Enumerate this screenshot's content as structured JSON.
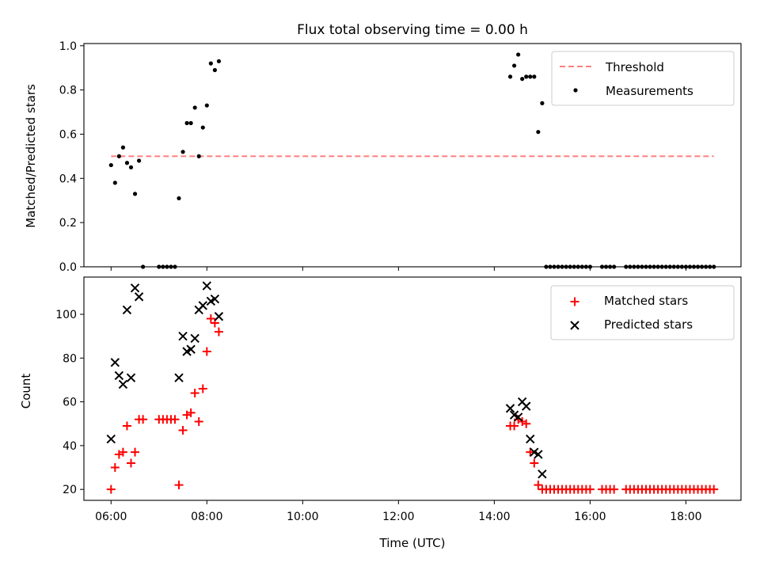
{
  "figure": {
    "title": "Flux total observing time = 0.00 h"
  },
  "chart_data": [
    {
      "type": "scatter",
      "xlabel": "",
      "ylabel": "Matched/Predicted stars",
      "xlim": [
        "05:26",
        "19:09"
      ],
      "ylim": [
        0,
        1.01
      ],
      "yticks": [
        "0.0",
        "0.2",
        "0.4",
        "0.6",
        "0.8",
        "1.0"
      ],
      "grid": false,
      "legend_position": "upper right",
      "threshold": {
        "name": "Threshold",
        "x": [
          "06:00",
          "18:35"
        ],
        "y": 0.5,
        "color": "#ff7f7f"
      },
      "series": [
        {
          "name": "Measurements",
          "color": "#000000",
          "x": [
            "06:00",
            "06:05",
            "06:10",
            "06:15",
            "06:20",
            "06:25",
            "06:30",
            "06:35",
            "06:40",
            "07:00",
            "07:05",
            "07:10",
            "07:15",
            "07:20",
            "07:25",
            "07:30",
            "07:35",
            "07:40",
            "07:45",
            "07:50",
            "07:55",
            "08:00",
            "08:05",
            "08:10",
            "08:15",
            "14:20",
            "14:25",
            "14:30",
            "14:35",
            "14:40",
            "14:45",
            "14:50",
            "14:55",
            "15:00",
            "15:05",
            "15:10",
            "15:15",
            "15:20",
            "15:25",
            "15:30",
            "15:35",
            "15:40",
            "15:45",
            "15:50",
            "15:55",
            "16:00",
            "16:15",
            "16:20",
            "16:25",
            "16:30",
            "16:45",
            "16:50",
            "16:55",
            "17:00",
            "17:05",
            "17:10",
            "17:15",
            "17:20",
            "17:25",
            "17:30",
            "17:35",
            "17:40",
            "17:45",
            "17:50",
            "17:55",
            "18:00",
            "18:05",
            "18:10",
            "18:15",
            "18:20",
            "18:25",
            "18:30",
            "18:35"
          ],
          "y": [
            0.46,
            0.38,
            0.5,
            0.54,
            0.47,
            0.45,
            0.33,
            0.48,
            0.0,
            0.0,
            0.0,
            0.0,
            0.0,
            0.0,
            0.31,
            0.52,
            0.65,
            0.65,
            0.72,
            0.5,
            0.63,
            0.73,
            0.92,
            0.89,
            0.93,
            0.86,
            0.91,
            0.96,
            0.85,
            0.86,
            0.86,
            0.86,
            0.61,
            0.74,
            0.0,
            0.0,
            0.0,
            0.0,
            0.0,
            0.0,
            0.0,
            0.0,
            0.0,
            0.0,
            0.0,
            0.0,
            0.0,
            0.0,
            0.0,
            0.0,
            0.0,
            0.0,
            0.0,
            0.0,
            0.0,
            0.0,
            0.0,
            0.0,
            0.0,
            0.0,
            0.0,
            0.0,
            0.0,
            0.0,
            0.0,
            0.0,
            0.0,
            0.0,
            0.0,
            0.0,
            0.0,
            0.0,
            0.0
          ]
        }
      ]
    },
    {
      "type": "scatter",
      "xlabel": "Time (UTC)",
      "ylabel": "Count",
      "xlim": [
        "05:26",
        "19:09"
      ],
      "ylim": [
        15,
        117
      ],
      "xticks": [
        "06:00",
        "08:00",
        "10:00",
        "12:00",
        "14:00",
        "16:00",
        "18:00"
      ],
      "yticks": [
        "20",
        "40",
        "60",
        "80",
        "100"
      ],
      "grid": false,
      "legend_position": "upper right",
      "series": [
        {
          "name": "Matched stars",
          "marker": "+",
          "color": "#ff0000",
          "x": [
            "06:00",
            "06:05",
            "06:10",
            "06:15",
            "06:20",
            "06:25",
            "06:30",
            "06:35",
            "06:40",
            "07:00",
            "07:05",
            "07:10",
            "07:15",
            "07:20",
            "07:25",
            "07:30",
            "07:35",
            "07:40",
            "07:45",
            "07:50",
            "07:55",
            "08:00",
            "08:05",
            "08:10",
            "08:15",
            "14:20",
            "14:25",
            "14:30",
            "14:35",
            "14:40",
            "14:45",
            "14:50",
            "14:55",
            "15:00",
            "15:05",
            "15:10",
            "15:15",
            "15:20",
            "15:25",
            "15:30",
            "15:35",
            "15:40",
            "15:45",
            "15:50",
            "15:55",
            "16:00",
            "16:15",
            "16:20",
            "16:25",
            "16:30",
            "16:45",
            "16:50",
            "16:55",
            "17:00",
            "17:05",
            "17:10",
            "17:15",
            "17:20",
            "17:25",
            "17:30",
            "17:35",
            "17:40",
            "17:45",
            "17:50",
            "17:55",
            "18:00",
            "18:05",
            "18:10",
            "18:15",
            "18:20",
            "18:25",
            "18:30",
            "18:35"
          ],
          "y": [
            20,
            30,
            36,
            37,
            49,
            32,
            37,
            52,
            52,
            52,
            52,
            52,
            52,
            52,
            22,
            47,
            54,
            55,
            64,
            51,
            66,
            83,
            98,
            96,
            92,
            49,
            49,
            52,
            51,
            50,
            37,
            32,
            22,
            20,
            20,
            20,
            20,
            20,
            20,
            20,
            20,
            20,
            20,
            20,
            20,
            20,
            20,
            20,
            20,
            20,
            20,
            20,
            20,
            20,
            20,
            20,
            20,
            20,
            20,
            20,
            20,
            20,
            20,
            20,
            20,
            20,
            20,
            20,
            20,
            20,
            20,
            20,
            20
          ]
        },
        {
          "name": "Predicted stars",
          "marker": "x",
          "color": "#000000",
          "x": [
            "06:00",
            "06:05",
            "06:10",
            "06:15",
            "06:20",
            "06:25",
            "06:30",
            "06:35",
            "07:25",
            "07:30",
            "07:35",
            "07:40",
            "07:45",
            "07:50",
            "07:55",
            "08:00",
            "08:05",
            "08:10",
            "08:15",
            "14:20",
            "14:25",
            "14:30",
            "14:35",
            "14:40",
            "14:45",
            "14:50",
            "14:55",
            "15:00"
          ],
          "y": [
            43,
            78,
            72,
            68,
            102,
            71,
            112,
            108,
            71,
            90,
            83,
            84,
            89,
            102,
            104,
            113,
            106,
            107,
            99,
            57,
            54,
            53,
            60,
            58,
            43,
            37,
            36,
            27
          ]
        }
      ]
    }
  ]
}
